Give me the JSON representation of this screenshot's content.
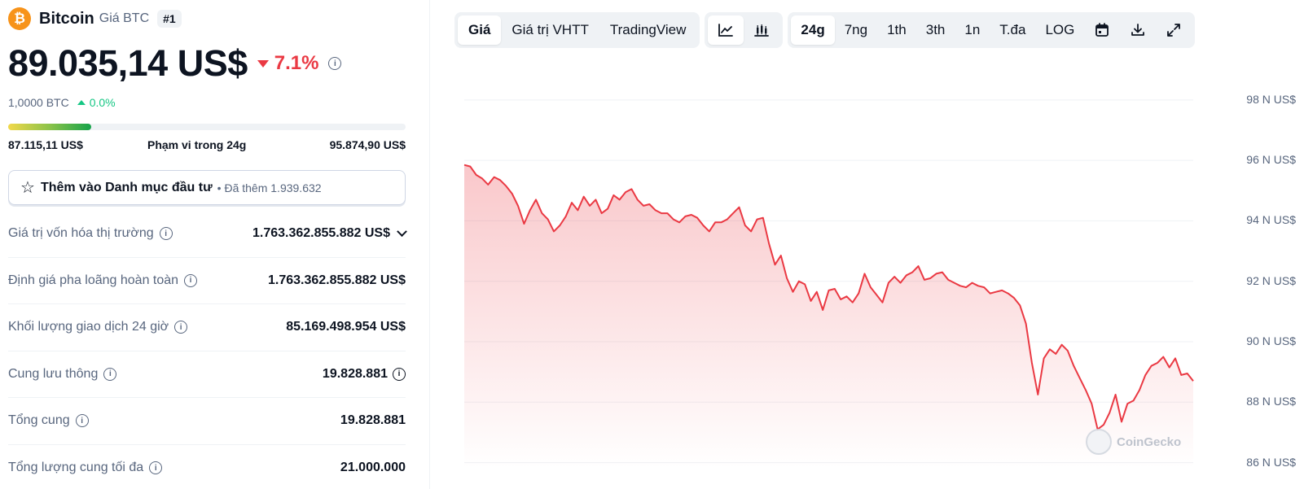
{
  "coin": {
    "logo_symbol": "₿",
    "name": "Bitcoin",
    "subtitle": "Giá BTC",
    "rank": "#1",
    "brand_color": "#f7931a"
  },
  "price": {
    "value": "89.035,14 US$",
    "change_24h": "7.1%",
    "change_direction": "down",
    "down_color": "#ea3943"
  },
  "btc": {
    "amount": "1,0000 BTC",
    "change": "0.0%",
    "change_direction": "up",
    "up_color": "#16c784"
  },
  "range_24h": {
    "low": "87.115,11 US$",
    "label": "Phạm vi trong 24g",
    "high": "95.874,90 US$",
    "current_fraction": 0.21
  },
  "watchlist": {
    "label": "Thêm vào Danh mục đầu tư",
    "added_text": "Đã thêm 1.939.632",
    "icon": "star-outline-icon"
  },
  "stats": [
    {
      "label": "Giá trị vốn hóa thị trường",
      "value": "1.763.362.855.882 US$"
    },
    {
      "label": "Định giá pha loãng hoàn toàn",
      "value": "1.763.362.855.882 US$"
    },
    {
      "label": "Khối lượng giao dịch 24 giờ",
      "value": "85.169.498.954 US$"
    },
    {
      "label": "Cung lưu thông",
      "value": "19.828.881"
    },
    {
      "label": "Tổng cung",
      "value": "19.828.881"
    },
    {
      "label": "Tổng lượng cung tối đa",
      "value": "21.000.000"
    }
  ],
  "toolbar": {
    "view_tabs": [
      "Giá",
      "Giá trị VHTT",
      "TradingView"
    ],
    "view_active": "Giá",
    "chart_type_icons": [
      "line-chart-icon",
      "candlestick-chart-icon"
    ],
    "time_tabs": [
      "24g",
      "7ng",
      "1th",
      "3th",
      "1n",
      "T.đa",
      "LOG"
    ],
    "time_active": "24g",
    "action_icons": [
      "calendar-icon",
      "download-icon",
      "expand-icon"
    ]
  },
  "chart_data": {
    "type": "area",
    "y_tick_labels": [
      "98 N US$",
      "96 N US$",
      "94 N US$",
      "92 N US$",
      "90 N US$",
      "88 N US$",
      "86 N US$"
    ],
    "y_ticks": [
      98000,
      96000,
      94000,
      92000,
      90000,
      88000,
      86000
    ],
    "ylim": [
      85800,
      98400
    ],
    "grid": true,
    "line_color": "#ea3943",
    "watermark": "CoinGecko",
    "values": [
      95850,
      95800,
      95520,
      95400,
      95200,
      95450,
      95350,
      95150,
      94900,
      94500,
      93900,
      94350,
      94700,
      94250,
      94050,
      93650,
      93850,
      94150,
      94600,
      94350,
      94800,
      94500,
      94700,
      94250,
      94400,
      94850,
      94700,
      94950,
      95050,
      94700,
      94500,
      94550,
      94350,
      94250,
      94250,
      94050,
      93950,
      94150,
      94200,
      94100,
      93850,
      93650,
      93950,
      93950,
      94050,
      94250,
      94450,
      93850,
      93650,
      94050,
      94100,
      93250,
      92550,
      92850,
      92100,
      91650,
      92000,
      91900,
      91350,
      91650,
      91050,
      91700,
      91750,
      91400,
      91500,
      91300,
      91600,
      92250,
      91800,
      91550,
      91300,
      91950,
      92150,
      91950,
      92200,
      92300,
      92500,
      92050,
      92100,
      92250,
      92300,
      92050,
      91950,
      91850,
      91800,
      91950,
      91850,
      91800,
      91600,
      91650,
      91700,
      91600,
      91450,
      91200,
      90600,
      89300,
      88250,
      89450,
      89750,
      89600,
      89900,
      89700,
      89200,
      88800,
      88400,
      87950,
      87100,
      87250,
      87650,
      88250,
      87350,
      87950,
      88050,
      88400,
      88900,
      89200,
      89300,
      89500,
      89150,
      89450,
      88900,
      88950,
      88700
    ]
  }
}
